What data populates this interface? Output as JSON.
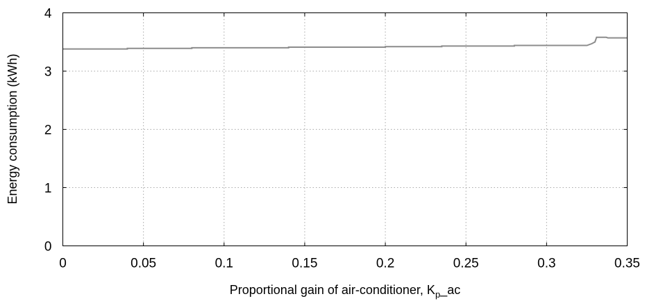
{
  "chart_data": {
    "type": "line",
    "title": "",
    "xlabel": "Proportional gain of air-conditioner, K",
    "xlabel_subscript": "p",
    "xlabel_suffix": "_ac",
    "ylabel": "Energy consumption (kWh)",
    "xlim": [
      0,
      0.35
    ],
    "ylim": [
      0,
      4
    ],
    "x_ticks": [
      0,
      0.05,
      0.1,
      0.15,
      0.2,
      0.25,
      0.3,
      0.35
    ],
    "x_tick_labels": [
      "0",
      "0.05",
      "0.1",
      "0.15",
      "0.2",
      "0.25",
      "0.3",
      "0.35"
    ],
    "y_ticks": [
      0,
      1,
      2,
      3,
      4
    ],
    "y_tick_labels": [
      "0",
      "1",
      "2",
      "3",
      "4"
    ],
    "grid": true,
    "series": [
      {
        "color": "#8c8c8c",
        "x": [
          0,
          0.04,
          0.04,
          0.08,
          0.08,
          0.14,
          0.14,
          0.2,
          0.2,
          0.235,
          0.235,
          0.28,
          0.28,
          0.325,
          0.328,
          0.33,
          0.331,
          0.337,
          0.338,
          0.35
        ],
        "y": [
          3.38,
          3.38,
          3.39,
          3.39,
          3.4,
          3.4,
          3.41,
          3.41,
          3.42,
          3.42,
          3.43,
          3.43,
          3.44,
          3.44,
          3.47,
          3.5,
          3.58,
          3.58,
          3.57,
          3.57
        ]
      }
    ]
  }
}
